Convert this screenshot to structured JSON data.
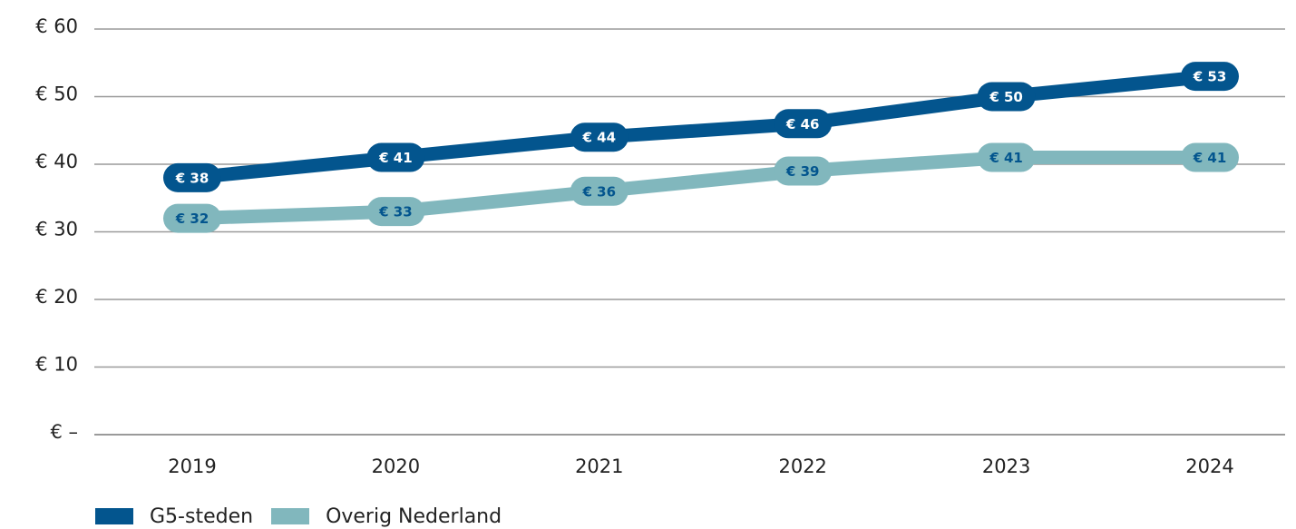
{
  "chart_data": {
    "type": "line",
    "categories": [
      "2019",
      "2020",
      "2021",
      "2022",
      "2023",
      "2024"
    ],
    "series": [
      {
        "name": "G5-steden",
        "values": [
          38,
          41,
          44,
          46,
          50,
          53
        ],
        "labels": [
          "€ 38",
          "€ 41",
          "€ 44",
          "€ 46",
          "€ 50",
          "€ 53"
        ]
      },
      {
        "name": "Overig Nederland",
        "values": [
          32,
          33,
          36,
          39,
          41,
          41
        ],
        "labels": [
          "€ 32",
          "€ 33",
          "€ 36",
          "€ 39",
          "€ 41",
          "€ 41"
        ]
      }
    ],
    "y_ticks": [
      0,
      10,
      20,
      30,
      40,
      50,
      60
    ],
    "y_tick_labels": [
      "€ –",
      "€ 10",
      "€ 20",
      "€ 30",
      "€ 40",
      "€ 50",
      "€ 60"
    ],
    "ylim": [
      0,
      60
    ],
    "grid": true,
    "legend_position": "bottom-left",
    "colors": {
      "G5-steden": "#03558e",
      "Overig Nederland": "#81b7bd",
      "label_text_dark": "#ffffff",
      "label_text_light": "#03558e",
      "grid": "#9a9a9a"
    }
  }
}
